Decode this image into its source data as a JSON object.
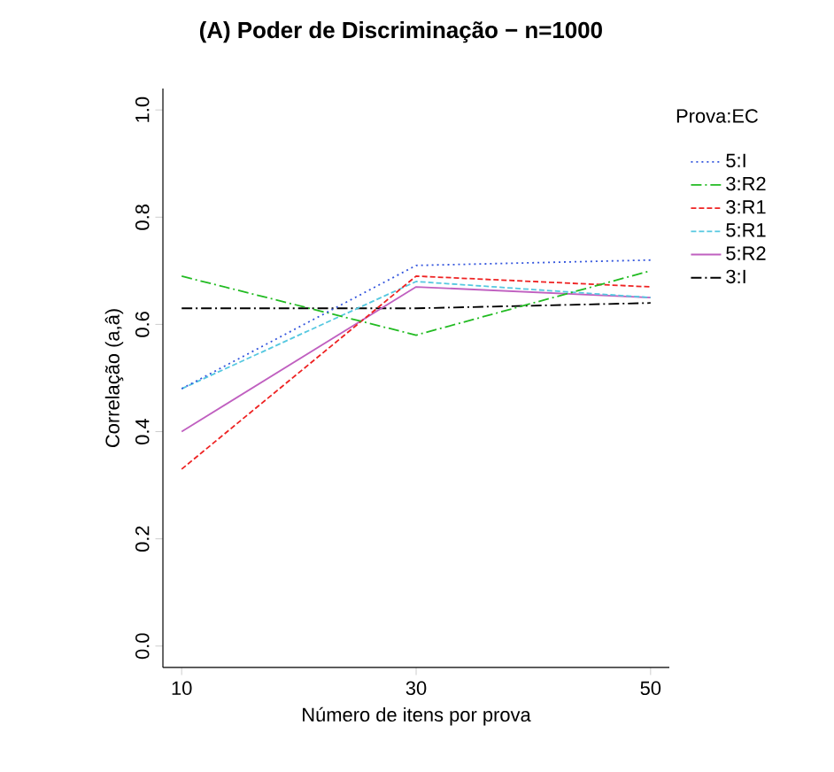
{
  "chart_data": {
    "type": "line",
    "title": "(A) Poder de Discriminação − n=1000",
    "xlabel": "Número de itens por prova",
    "ylabel": "Correlação (a,â)",
    "legend_title": "Prova:EC",
    "x": [
      10,
      30,
      50
    ],
    "xlim": [
      8.4,
      51.6
    ],
    "xticks": [
      10,
      30,
      50
    ],
    "ylim": [
      -0.04,
      1.04
    ],
    "yticks": [
      {
        "value": 0,
        "label": "0.0"
      },
      0.2,
      0.4,
      0.6,
      0.8,
      {
        "value": 1,
        "label": "1.0"
      }
    ],
    "grid": false,
    "legend": "right",
    "marker": "none",
    "series": [
      {
        "name": "5:I",
        "color": "#3355dd",
        "line_style": "dotted",
        "values": [
          0.48,
          0.71,
          0.72
        ]
      },
      {
        "name": "3:R2",
        "color": "#22bb22",
        "line_style": "dashdot",
        "values": [
          0.69,
          0.58,
          0.7
        ]
      },
      {
        "name": "3:R1",
        "color": "#ee2222",
        "line_style": "dashed",
        "values": [
          0.33,
          0.69,
          0.67
        ]
      },
      {
        "name": "5:R1",
        "color": "#55c8e0",
        "line_style": "dashed",
        "values": [
          0.48,
          0.68,
          0.65
        ]
      },
      {
        "name": "5:R2",
        "color": "#c060c0",
        "line_style": "solid",
        "values": [
          0.4,
          0.67,
          0.65
        ]
      },
      {
        "name": "3:I",
        "color": "#000000",
        "line_style": "dashdot",
        "values": [
          0.63,
          0.63,
          0.64
        ]
      }
    ]
  }
}
